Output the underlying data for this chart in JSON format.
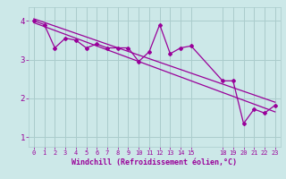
{
  "zigzag_x": [
    0,
    1,
    2,
    3,
    4,
    5,
    6,
    7,
    8,
    9,
    10,
    11,
    12,
    13,
    14,
    15,
    18,
    19,
    20,
    21,
    22,
    23
  ],
  "zigzag_y": [
    4.0,
    3.9,
    3.3,
    3.55,
    3.5,
    3.3,
    3.4,
    3.3,
    3.3,
    3.3,
    2.95,
    3.2,
    3.9,
    3.15,
    3.3,
    3.35,
    2.45,
    2.45,
    1.35,
    1.72,
    1.62,
    1.82
  ],
  "line1_x": [
    0,
    23
  ],
  "line1_y": [
    4.05,
    1.9
  ],
  "line2_x": [
    0,
    23
  ],
  "line2_y": [
    3.95,
    1.65
  ],
  "line_color": "#990099",
  "bg_color": "#cce8e8",
  "grid_color": "#aacccc",
  "axis_color": "#990099",
  "xlabel": "Windchill (Refroidissement éolien,°C)",
  "xlim": [
    -0.5,
    23.5
  ],
  "ylim": [
    0.75,
    4.35
  ],
  "yticks": [
    1,
    2,
    3,
    4
  ],
  "xticks": [
    0,
    1,
    2,
    3,
    4,
    5,
    6,
    7,
    8,
    9,
    10,
    11,
    12,
    13,
    14,
    15,
    18,
    19,
    20,
    21,
    22,
    23
  ]
}
